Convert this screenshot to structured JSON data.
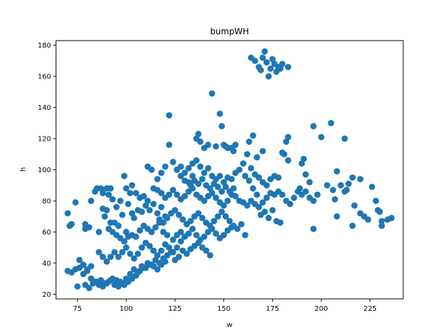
{
  "chart_data": {
    "type": "scatter",
    "title": "bumpWH",
    "xlabel": "w",
    "ylabel": "h",
    "xlim": [
      64,
      242
    ],
    "ylim": [
      17,
      183
    ],
    "xticks": [
      75,
      100,
      125,
      150,
      175,
      200,
      225
    ],
    "yticks": [
      20,
      40,
      60,
      80,
      100,
      120,
      140,
      160,
      180
    ],
    "grid": false,
    "marker_color": "#1f77b4",
    "points": [
      [
        70,
        72
      ],
      [
        71,
        64
      ],
      [
        72,
        65
      ],
      [
        74,
        79
      ],
      [
        79,
        65
      ],
      [
        79,
        62
      ],
      [
        81,
        63
      ],
      [
        82,
        80
      ],
      [
        84,
        86
      ],
      [
        87,
        88
      ],
      [
        88,
        85
      ],
      [
        90,
        88
      ],
      [
        92,
        88
      ],
      [
        85,
        88
      ],
      [
        89,
        70
      ],
      [
        86,
        60
      ],
      [
        88,
        75
      ],
      [
        90,
        74
      ],
      [
        91,
        84
      ],
      [
        93,
        81
      ],
      [
        95,
        76
      ],
      [
        97,
        80
      ],
      [
        99,
        96
      ],
      [
        100,
        88
      ],
      [
        102,
        85
      ],
      [
        103,
        90
      ],
      [
        105,
        85
      ],
      [
        107,
        82
      ],
      [
        109,
        83
      ],
      [
        111,
        80
      ],
      [
        92,
        66
      ],
      [
        94,
        66
      ],
      [
        96,
        64
      ],
      [
        98,
        71
      ],
      [
        100,
        60
      ],
      [
        101,
        78
      ],
      [
        103,
        72
      ],
      [
        104,
        69
      ],
      [
        106,
        74
      ],
      [
        108,
        73
      ],
      [
        110,
        77
      ],
      [
        112,
        74
      ],
      [
        114,
        78
      ],
      [
        116,
        72
      ],
      [
        118,
        76
      ],
      [
        120,
        70
      ],
      [
        91,
        62
      ],
      [
        93,
        60
      ],
      [
        95,
        58
      ],
      [
        97,
        56
      ],
      [
        99,
        54
      ],
      [
        101,
        57
      ],
      [
        103,
        58
      ],
      [
        105,
        57
      ],
      [
        107,
        61
      ],
      [
        109,
        64
      ],
      [
        111,
        62
      ],
      [
        113,
        60
      ],
      [
        115,
        63
      ],
      [
        117,
        66
      ],
      [
        119,
        60
      ],
      [
        121,
        58
      ],
      [
        86,
        47
      ],
      [
        88,
        44
      ],
      [
        90,
        41
      ],
      [
        92,
        44
      ],
      [
        94,
        47
      ],
      [
        96,
        44
      ],
      [
        98,
        47
      ],
      [
        100,
        50
      ],
      [
        102,
        46
      ],
      [
        104,
        43
      ],
      [
        106,
        46
      ],
      [
        108,
        50
      ],
      [
        110,
        53
      ],
      [
        112,
        51
      ],
      [
        114,
        48
      ],
      [
        116,
        45
      ],
      [
        118,
        48
      ],
      [
        120,
        52
      ],
      [
        122,
        50
      ],
      [
        124,
        47
      ],
      [
        126,
        50
      ],
      [
        128,
        54
      ],
      [
        76,
        42
      ],
      [
        78,
        39
      ],
      [
        80,
        36
      ],
      [
        82,
        38
      ],
      [
        70,
        35
      ],
      [
        72,
        34
      ],
      [
        74,
        36
      ],
      [
        76,
        37
      ],
      [
        78,
        33
      ],
      [
        80,
        35
      ],
      [
        75,
        25
      ],
      [
        79,
        26
      ],
      [
        81,
        24
      ],
      [
        83,
        27
      ],
      [
        85,
        28
      ],
      [
        87,
        29
      ],
      [
        89,
        27
      ],
      [
        91,
        28
      ],
      [
        93,
        30
      ],
      [
        95,
        29
      ],
      [
        97,
        28
      ],
      [
        99,
        26
      ],
      [
        101,
        28
      ],
      [
        103,
        30
      ],
      [
        105,
        32
      ],
      [
        107,
        35
      ],
      [
        109,
        37
      ],
      [
        111,
        40
      ],
      [
        113,
        39
      ],
      [
        115,
        42
      ],
      [
        117,
        40
      ],
      [
        119,
        43
      ],
      [
        121,
        45
      ],
      [
        123,
        47
      ],
      [
        125,
        42
      ],
      [
        127,
        44
      ],
      [
        129,
        48
      ],
      [
        131,
        46
      ],
      [
        133,
        49
      ],
      [
        135,
        51
      ],
      [
        137,
        53
      ],
      [
        139,
        50
      ],
      [
        141,
        48
      ],
      [
        143,
        45
      ],
      [
        82,
        30
      ],
      [
        84,
        28
      ],
      [
        86,
        26
      ],
      [
        88,
        25
      ],
      [
        90,
        27
      ],
      [
        92,
        29
      ],
      [
        94,
        26
      ],
      [
        96,
        25
      ],
      [
        98,
        27
      ],
      [
        100,
        30
      ],
      [
        102,
        33
      ],
      [
        104,
        36
      ],
      [
        106,
        34
      ],
      [
        108,
        38
      ],
      [
        110,
        37
      ],
      [
        112,
        39
      ],
      [
        114,
        38
      ],
      [
        116,
        36
      ],
      [
        118,
        39
      ],
      [
        120,
        41
      ],
      [
        111,
        102
      ],
      [
        113,
        100
      ],
      [
        114,
        88
      ],
      [
        116,
        94
      ],
      [
        118,
        98
      ],
      [
        120,
        102
      ],
      [
        122,
        116
      ],
      [
        122,
        135
      ],
      [
        124,
        105
      ],
      [
        126,
        100
      ],
      [
        128,
        96
      ],
      [
        130,
        93
      ],
      [
        132,
        92
      ],
      [
        134,
        96
      ],
      [
        136,
        120
      ],
      [
        137,
        123
      ],
      [
        138,
        118
      ],
      [
        140,
        114
      ],
      [
        142,
        116
      ],
      [
        144,
        149
      ],
      [
        146,
        115
      ],
      [
        148,
        136
      ],
      [
        149,
        128
      ],
      [
        150,
        116
      ],
      [
        151,
        115
      ],
      [
        152,
        114
      ],
      [
        154,
        114
      ],
      [
        155,
        112
      ],
      [
        156,
        116
      ],
      [
        116,
        87
      ],
      [
        118,
        85
      ],
      [
        120,
        82
      ],
      [
        122,
        84
      ],
      [
        124,
        87
      ],
      [
        126,
        84
      ],
      [
        128,
        81
      ],
      [
        130,
        83
      ],
      [
        132,
        86
      ],
      [
        134,
        88
      ],
      [
        136,
        84
      ],
      [
        138,
        82
      ],
      [
        140,
        80
      ],
      [
        142,
        83
      ],
      [
        144,
        85
      ],
      [
        146,
        82
      ],
      [
        148,
        79
      ],
      [
        150,
        77
      ],
      [
        152,
        80
      ],
      [
        154,
        84
      ],
      [
        156,
        83
      ],
      [
        117,
        68
      ],
      [
        119,
        66
      ],
      [
        121,
        69
      ],
      [
        123,
        72
      ],
      [
        125,
        74
      ],
      [
        127,
        71
      ],
      [
        129,
        68
      ],
      [
        131,
        65
      ],
      [
        133,
        67
      ],
      [
        135,
        70
      ],
      [
        137,
        72
      ],
      [
        139,
        69
      ],
      [
        141,
        66
      ],
      [
        143,
        64
      ],
      [
        145,
        67
      ],
      [
        147,
        70
      ],
      [
        149,
        73
      ],
      [
        151,
        70
      ],
      [
        153,
        67
      ],
      [
        155,
        64
      ],
      [
        157,
        62
      ],
      [
        159,
        65
      ],
      [
        161,
        58
      ],
      [
        124,
        55
      ],
      [
        126,
        58
      ],
      [
        128,
        60
      ],
      [
        130,
        57
      ],
      [
        132,
        59
      ],
      [
        134,
        62
      ],
      [
        136,
        58
      ],
      [
        138,
        55
      ],
      [
        140,
        57
      ],
      [
        142,
        60
      ],
      [
        144,
        62
      ],
      [
        146,
        59
      ],
      [
        148,
        56
      ],
      [
        150,
        58
      ],
      [
        152,
        61
      ],
      [
        154,
        63
      ],
      [
        126,
        100
      ],
      [
        128,
        102
      ],
      [
        130,
        98
      ],
      [
        132,
        101
      ],
      [
        134,
        104
      ],
      [
        136,
        106
      ],
      [
        138,
        102
      ],
      [
        140,
        98
      ],
      [
        142,
        101
      ],
      [
        144,
        96
      ],
      [
        146,
        94
      ],
      [
        148,
        96
      ],
      [
        150,
        92
      ],
      [
        152,
        95
      ],
      [
        154,
        94
      ],
      [
        156,
        98
      ],
      [
        158,
        100
      ],
      [
        160,
        104
      ],
      [
        162,
        110
      ],
      [
        163,
        118
      ],
      [
        165,
        122
      ],
      [
        167,
        108
      ],
      [
        170,
        112
      ],
      [
        133,
        90
      ],
      [
        135,
        93
      ],
      [
        137,
        91
      ],
      [
        139,
        94
      ],
      [
        141,
        90
      ],
      [
        143,
        88
      ],
      [
        145,
        91
      ],
      [
        147,
        89
      ],
      [
        149,
        86
      ],
      [
        151,
        89
      ],
      [
        153,
        86
      ],
      [
        155,
        88
      ],
      [
        158,
        80
      ],
      [
        160,
        79
      ],
      [
        162,
        77
      ],
      [
        164,
        80
      ],
      [
        166,
        78
      ],
      [
        168,
        76
      ],
      [
        170,
        79
      ],
      [
        172,
        82
      ],
      [
        174,
        85
      ],
      [
        176,
        84
      ],
      [
        178,
        86
      ],
      [
        180,
        84
      ],
      [
        182,
        80
      ],
      [
        184,
        78
      ],
      [
        186,
        82
      ],
      [
        188,
        86
      ],
      [
        190,
        84
      ],
      [
        192,
        86
      ],
      [
        194,
        82
      ],
      [
        196,
        80
      ],
      [
        198,
        84
      ],
      [
        164,
        101
      ],
      [
        166,
        97
      ],
      [
        168,
        95
      ],
      [
        170,
        92
      ],
      [
        172,
        90
      ],
      [
        174,
        94
      ],
      [
        176,
        96
      ],
      [
        178,
        95
      ],
      [
        180,
        111
      ],
      [
        181,
        110
      ],
      [
        182,
        118
      ],
      [
        183,
        121
      ],
      [
        183,
        106
      ],
      [
        161,
        96
      ],
      [
        163,
        93
      ],
      [
        165,
        88
      ],
      [
        167,
        84
      ],
      [
        169,
        71
      ],
      [
        171,
        73
      ],
      [
        173,
        69
      ],
      [
        175,
        74
      ],
      [
        177,
        67
      ],
      [
        179,
        66
      ],
      [
        164,
        172
      ],
      [
        166,
        170
      ],
      [
        168,
        166
      ],
      [
        169,
        164
      ],
      [
        170,
        172
      ],
      [
        171,
        176
      ],
      [
        172,
        169
      ],
      [
        173,
        160
      ],
      [
        174,
        165
      ],
      [
        175,
        171
      ],
      [
        176,
        168
      ],
      [
        177,
        163
      ],
      [
        178,
        166
      ],
      [
        179,
        165
      ],
      [
        180,
        168
      ],
      [
        183,
        166
      ],
      [
        189,
        88
      ],
      [
        190,
        104
      ],
      [
        191,
        107
      ],
      [
        192,
        97
      ],
      [
        194,
        92
      ],
      [
        196,
        62
      ],
      [
        196,
        128
      ],
      [
        200,
        121
      ],
      [
        203,
        90
      ],
      [
        205,
        130
      ],
      [
        206,
        87
      ],
      [
        207,
        81
      ],
      [
        208,
        99
      ],
      [
        210,
        90
      ],
      [
        212,
        120
      ],
      [
        213,
        87
      ],
      [
        214,
        91
      ],
      [
        216,
        95
      ],
      [
        216,
        64
      ],
      [
        217,
        77
      ],
      [
        220,
        94
      ],
      [
        222,
        70
      ],
      [
        224,
        68
      ],
      [
        226,
        89
      ],
      [
        228,
        80
      ],
      [
        229,
        74
      ],
      [
        230,
        73
      ],
      [
        231,
        67
      ],
      [
        231,
        64
      ],
      [
        234,
        68
      ],
      [
        236,
        69
      ],
      [
        208,
        70
      ],
      [
        212,
        86
      ],
      [
        220,
        72
      ]
    ]
  }
}
